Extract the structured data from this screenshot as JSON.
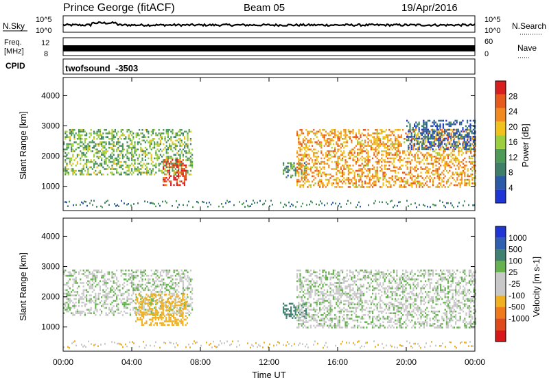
{
  "header": {
    "station": "Prince George (fitACF)",
    "beam": "Beam 05",
    "date": "19/Apr/2016"
  },
  "nsky_panel": {
    "left_label": "N.Sky",
    "ticks": [
      "10^5",
      "10^0"
    ],
    "right_label": "N.Search"
  },
  "freq_panel": {
    "left_label_1": "Freq.",
    "left_label_2": "[MHz]",
    "left_ticks": [
      "12",
      "8"
    ],
    "right_ticks": [
      "60",
      "0"
    ],
    "right_label": "Nave"
  },
  "cpid_panel": {
    "label": "CPID",
    "program": "twofsound",
    "cpid_value": "-3503"
  },
  "colors": {
    "power_scale": [
      "#1f35d6",
      "#2b5aa8",
      "#3f7f6a",
      "#4e9b57",
      "#9ccf3d",
      "#f1c21b",
      "#f28a1f",
      "#e85a1c",
      "#d81e1e"
    ],
    "velocity_scale": [
      "#1f35d6",
      "#2f5fb0",
      "#3f8070",
      "#65b24f",
      "#c8c8c8",
      "#c8c8c8",
      "#f0b020",
      "#f07a1a",
      "#e04a1a",
      "#d81818"
    ]
  },
  "chart_data": [
    {
      "type": "heatmap",
      "title": "Power",
      "xlabel": "Time UT",
      "ylabel": "Slant Range [km]",
      "x_ticks": [
        "00:00",
        "04:00",
        "08:00",
        "12:00",
        "16:00",
        "20:00",
        "00:00"
      ],
      "y_ticks": [
        1000,
        2000,
        3000,
        4000
      ],
      "ylim": [
        200,
        4600
      ],
      "colorbar_label": "Power [dB]",
      "colorbar_ticks": [
        4,
        8,
        12,
        16,
        20,
        24,
        28
      ],
      "colorbar_range": [
        0,
        32
      ],
      "regions": [
        {
          "t0": 0.0,
          "t1": 7.5,
          "r0": 1400,
          "r1": 2900,
          "value": 14
        },
        {
          "t0": 5.8,
          "t1": 7.2,
          "r0": 1050,
          "r1": 1900,
          "value": 28
        },
        {
          "t0": 12.8,
          "t1": 14.2,
          "r0": 1300,
          "r1": 1800,
          "value": 12
        },
        {
          "t0": 13.6,
          "t1": 24.0,
          "r0": 1000,
          "r1": 2900,
          "value": 22
        },
        {
          "t0": 20.0,
          "t1": 24.0,
          "r0": 2200,
          "r1": 3200,
          "value": 6
        }
      ]
    },
    {
      "type": "heatmap",
      "title": "Velocity",
      "xlabel": "Time UT",
      "ylabel": "Slant Range [km]",
      "x_ticks": [
        "00:00",
        "04:00",
        "08:00",
        "12:00",
        "16:00",
        "20:00",
        "00:00"
      ],
      "y_ticks": [
        1000,
        2000,
        3000,
        4000
      ],
      "ylim": [
        200,
        4600
      ],
      "colorbar_label": "Velocity [m s-1]",
      "colorbar_ticks": [
        1000,
        500,
        100,
        25,
        -25,
        -100,
        -500,
        -1000
      ],
      "regions": [
        {
          "t0": 0.0,
          "t1": 7.5,
          "r0": 1400,
          "r1": 2900,
          "value": 0
        },
        {
          "t0": 4.2,
          "t1": 7.2,
          "r0": 1050,
          "r1": 2100,
          "value": -300
        },
        {
          "t0": 12.8,
          "t1": 14.2,
          "r0": 1300,
          "r1": 1800,
          "value": 200
        },
        {
          "t0": 13.6,
          "t1": 24.0,
          "r0": 1000,
          "r1": 2900,
          "value": 0
        }
      ]
    }
  ]
}
